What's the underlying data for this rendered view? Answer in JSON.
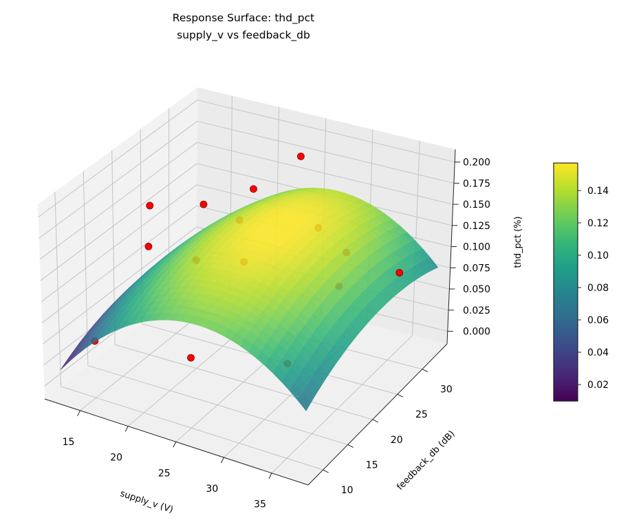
{
  "chart_data": {
    "type": "surface3d",
    "title": [
      "Response Surface: thd_pct",
      "supply_v vs feedback_db"
    ],
    "xlabel": "supply_v (V)",
    "ylabel": "feedback_db (dB)",
    "zlabel": "thd_pct (%)",
    "xlim": [
      11.3,
      38.8
    ],
    "ylim": [
      7,
      35
    ],
    "zlim": [
      -0.015,
      0.215
    ],
    "xticks": [
      "15",
      "20",
      "25",
      "30",
      "35"
    ],
    "yticks": [
      "10",
      "15",
      "20",
      "25",
      "30"
    ],
    "zticks": [
      "0.000",
      "0.025",
      "0.050",
      "0.075",
      "0.100",
      "0.125",
      "0.150",
      "0.175",
      "0.200"
    ],
    "grid": true,
    "surface": {
      "colormap": "viridis",
      "x_range": [
        12.5,
        38
      ],
      "y_range": [
        8,
        34
      ],
      "model": {
        "peak": 0.158,
        "x_center": 27,
        "y_center": 23,
        "x_curvature": 0.0005,
        "y_curvature": 0.00015
      }
    },
    "points": [
      {
        "x": 15,
        "y": 10,
        "z": 0.052,
        "above_surface": false
      },
      {
        "x": 25,
        "y": 10,
        "z": 0.068,
        "above_surface": true
      },
      {
        "x": 35,
        "y": 10,
        "z": 0.097,
        "above_surface": false
      },
      {
        "x": 15,
        "y": 20,
        "z": 0.113,
        "above_surface": false
      },
      {
        "x": 20,
        "y": 20,
        "z": 0.113,
        "above_surface": false
      },
      {
        "x": 14,
        "y": 22,
        "z": 0.148,
        "above_surface": true
      },
      {
        "x": 15,
        "y": 30,
        "z": 0.112,
        "above_surface": false
      },
      {
        "x": 20,
        "y": 28,
        "z": 0.118,
        "above_surface": false
      },
      {
        "x": 25,
        "y": 20,
        "z": 0.127,
        "above_surface": false
      },
      {
        "x": 18,
        "y": 34,
        "z": 0.118,
        "above_surface": true
      },
      {
        "x": 30,
        "y": 25,
        "z": 0.155,
        "above_surface": false
      },
      {
        "x": 23,
        "y": 34,
        "z": 0.17,
        "above_surface": true
      },
      {
        "x": 33,
        "y": 25,
        "z": 0.135,
        "above_surface": false
      },
      {
        "x": 36,
        "y": 18,
        "z": 0.145,
        "above_surface": false
      },
      {
        "x": 36,
        "y": 30,
        "z": 0.091,
        "above_surface": true
      }
    ],
    "point_color": "#ff0000",
    "colorbar": {
      "range": [
        0.0098,
        0.157
      ],
      "ticks": [
        "0.02",
        "0.04",
        "0.06",
        "0.08",
        "0.10",
        "0.12",
        "0.14"
      ]
    }
  }
}
